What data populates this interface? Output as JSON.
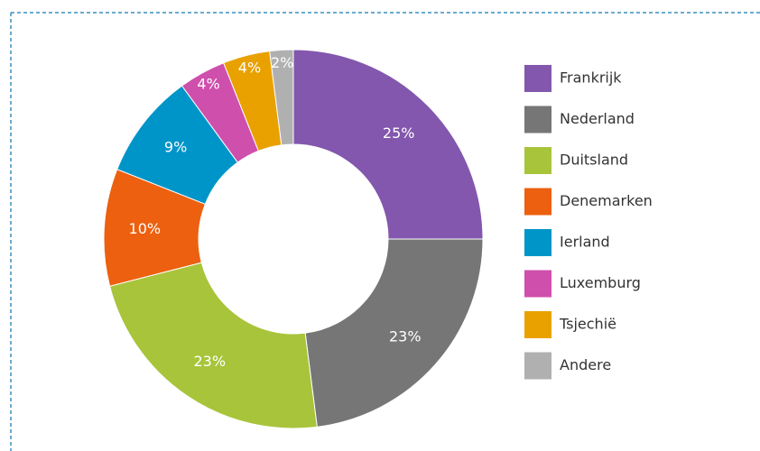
{
  "chart_data": {
    "type": "pie",
    "categories": [
      "Frankrijk",
      "Nederland",
      "Duitsland",
      "Denemarken",
      "Ierland",
      "Luxemburg",
      "Tsjechië",
      "Andere"
    ],
    "values": [
      25,
      23,
      23,
      10,
      9,
      4,
      4,
      2
    ],
    "value_labels": [
      "25%",
      "23%",
      "23%",
      "10%",
      "9%",
      "4%",
      "4%",
      "2%"
    ],
    "colors": [
      "#8257ad",
      "#767676",
      "#a8c43a",
      "#ec600f",
      "#0095c8",
      "#cf4fad",
      "#e9a100",
      "#b0b0b0"
    ],
    "donut": true
  }
}
